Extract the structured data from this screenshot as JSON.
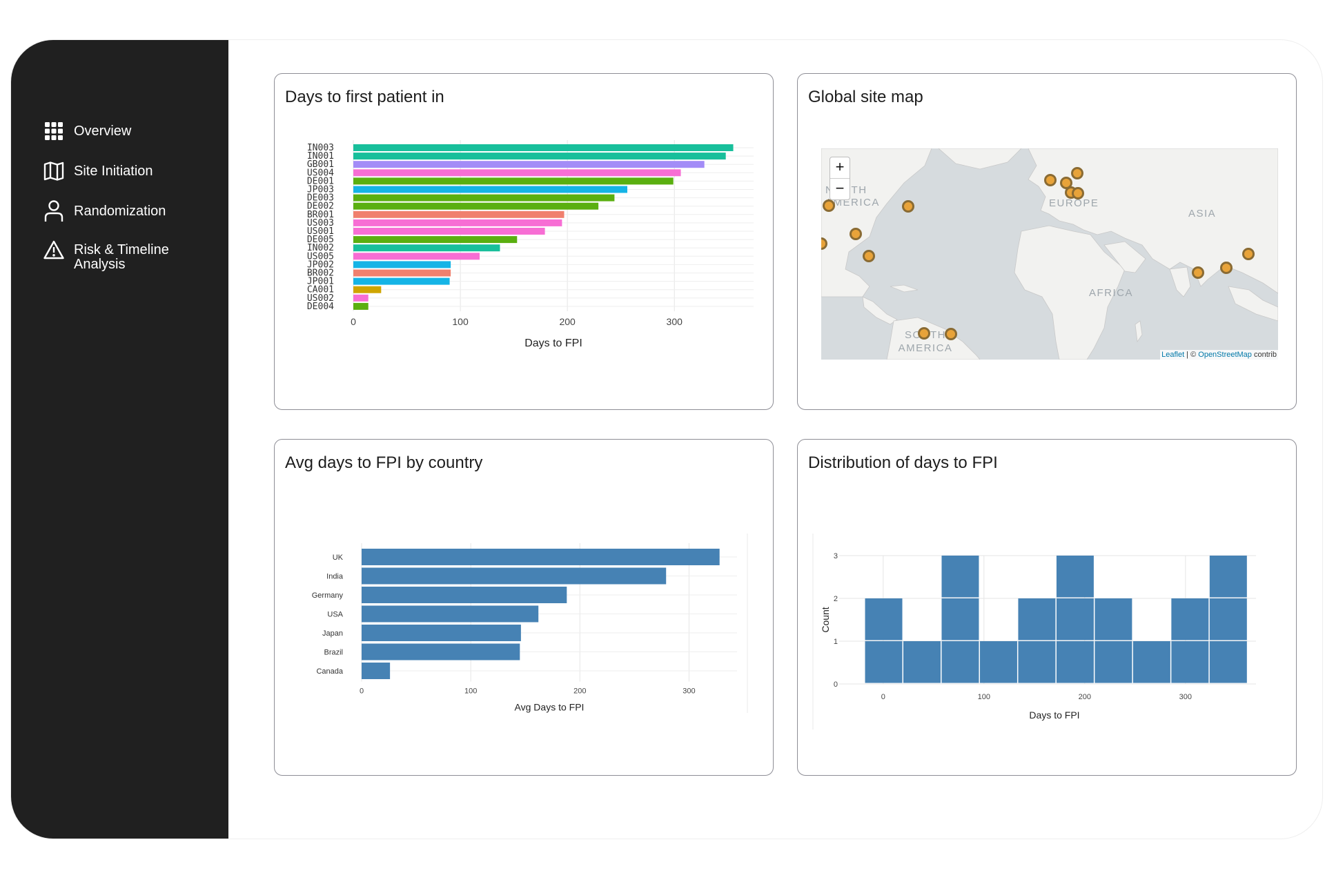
{
  "sidebar": {
    "items": [
      {
        "label": "Overview",
        "icon": "grid-icon"
      },
      {
        "label": "Site Initiation",
        "icon": "map-icon"
      },
      {
        "label": "Randomization",
        "icon": "user-icon"
      },
      {
        "label": "Risk & Timeline Analysis",
        "icon": "warning-icon"
      }
    ]
  },
  "cards": {
    "fpi": {
      "title": "Days to first patient in"
    },
    "map": {
      "title": "Global site map"
    },
    "country": {
      "title": "Avg days to FPI by country"
    },
    "dist": {
      "title": "Distribution of days to FPI"
    }
  },
  "map": {
    "zoom_in": "+",
    "zoom_out": "−",
    "labels": {
      "north_america": "NORTH AMERICA",
      "europe": "EUROPE",
      "asia": "ASIA",
      "africa": "AFRICA",
      "south_america": "SOUTH AMERICA"
    },
    "attribution_leaflet": "Leaflet",
    "attribution_sep": " | © ",
    "attribution_osm": "OpenStreetMap",
    "attribution_tail": " contrib",
    "marker_color": "#e8a33a"
  },
  "chart_data": [
    {
      "type": "bar",
      "orientation": "horizontal",
      "categories": [
        "IN003",
        "IN001",
        "GB001",
        "US004",
        "DE001",
        "JP003",
        "DE003",
        "DE002",
        "BR001",
        "US003",
        "US001",
        "DE005",
        "IN002",
        "US005",
        "JP002",
        "BR002",
        "JP001",
        "CA001",
        "US002",
        "DE004"
      ],
      "values": [
        355,
        348,
        328,
        306,
        299,
        256,
        244,
        229,
        197,
        195,
        179,
        153,
        137,
        118,
        91,
        91,
        90,
        26,
        14,
        14
      ],
      "colors": [
        "#18bf9b",
        "#18bf9b",
        "#a38cf7",
        "#f76ed4",
        "#5aaf10",
        "#15b4e6",
        "#5aaf10",
        "#5aaf10",
        "#f0806e",
        "#f76ed4",
        "#f76ed4",
        "#5aaf10",
        "#18bf9b",
        "#f76ed4",
        "#15b4e6",
        "#f0806e",
        "#15b4e6",
        "#cfa500",
        "#f76ed4",
        "#5aaf10"
      ],
      "xlabel": "Days to FPI",
      "xticks": [
        0,
        100,
        200,
        300
      ],
      "xlim": [
        0,
        374
      ]
    },
    {
      "type": "bar",
      "orientation": "horizontal",
      "categories": [
        "UK",
        "India",
        "Germany",
        "USA",
        "Japan",
        "Brazil",
        "Canada"
      ],
      "values": [
        328,
        279,
        188,
        162,
        146,
        145,
        26
      ],
      "color": "#4682b4",
      "xlabel": "Avg Days to FPI",
      "xticks": [
        0,
        100,
        200,
        300
      ],
      "xlim": [
        0,
        344
      ]
    },
    {
      "type": "histogram",
      "bins": [
        [
          -18,
          20
        ],
        [
          20,
          58
        ],
        [
          58,
          96
        ],
        [
          96,
          134
        ],
        [
          134,
          172
        ],
        [
          172,
          210
        ],
        [
          210,
          248
        ],
        [
          248,
          286
        ],
        [
          286,
          324
        ],
        [
          324,
          362
        ]
      ],
      "counts": [
        2,
        1,
        3,
        1,
        2,
        3,
        2,
        1,
        2,
        3
      ],
      "color": "#4682b4",
      "xlabel": "Days to FPI",
      "ylabel": "Count",
      "xticks": [
        0,
        100,
        200,
        300
      ],
      "yticks": [
        0,
        1,
        2,
        3
      ],
      "xlim": [
        -30,
        370
      ],
      "ylim": [
        0,
        3
      ]
    }
  ]
}
